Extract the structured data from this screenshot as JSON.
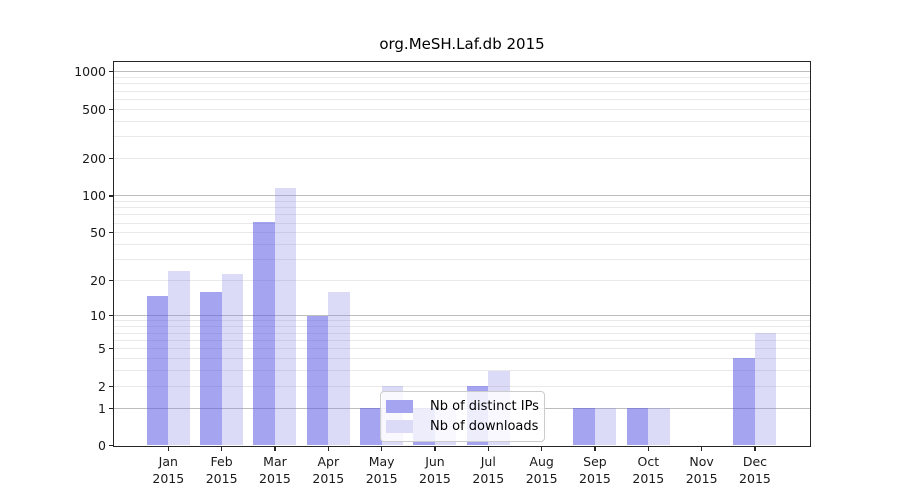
{
  "title": "org.MeSH.Laf.db 2015",
  "chart_data": {
    "type": "bar",
    "title": "org.MeSH.Laf.db 2015",
    "categories": [
      "Jan",
      "Feb",
      "Mar",
      "Apr",
      "May",
      "Jun",
      "Jul",
      "Aug",
      "Sep",
      "Oct",
      "Nov",
      "Dec"
    ],
    "year_label": "2015",
    "series": [
      {
        "name": "Nb of distinct IPs",
        "color": "#a4a4f0",
        "values": [
          15,
          16,
          61,
          10,
          1,
          1,
          2,
          0,
          1,
          1,
          0,
          4
        ]
      },
      {
        "name": "Nb of downloads",
        "color": "#dbdbf8",
        "values": [
          24,
          23,
          115,
          16,
          2,
          1,
          3,
          0,
          1,
          1,
          0,
          7
        ]
      }
    ],
    "yscale": "log1p",
    "ylim": [
      0,
      1200
    ],
    "y_ticks": [
      0,
      1,
      2,
      5,
      10,
      20,
      50,
      100,
      200,
      500,
      1000
    ],
    "y_major_gridlines": [
      1,
      10,
      100,
      1000
    ],
    "y_minor_gridlines": [
      2,
      3,
      4,
      5,
      6,
      7,
      8,
      9,
      20,
      30,
      40,
      50,
      60,
      70,
      80,
      90,
      200,
      300,
      400,
      500,
      600,
      700,
      800,
      900
    ],
    "grid": true,
    "legend_position": "lower center",
    "xlabel": "",
    "ylabel": ""
  },
  "colors": {
    "bar_ips": "#a4a4f0",
    "bar_downloads": "#dbdbf8",
    "major_grid": "#bdbdbd",
    "minor_grid": "#e9e9e9",
    "spine": "#262626",
    "text": "#1a1a1a"
  }
}
